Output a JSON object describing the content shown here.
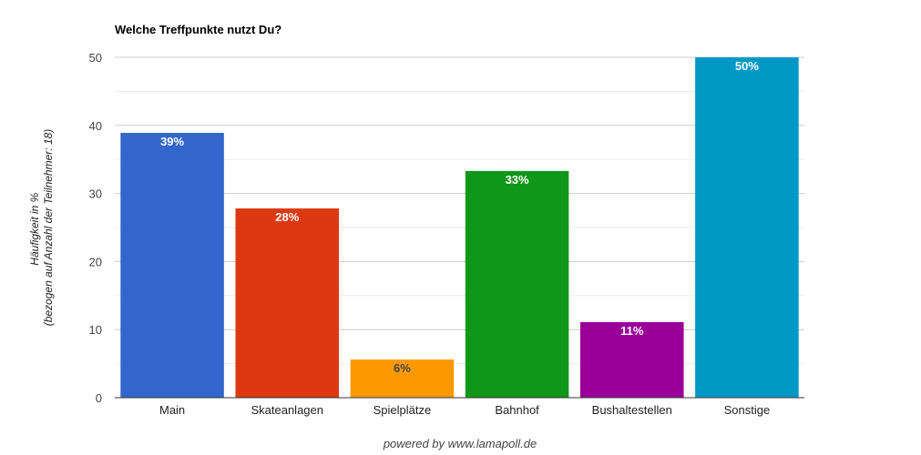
{
  "chart_data": {
    "type": "bar",
    "title": "Welche Treffpunkte nutzt Du?",
    "ylabel_line1": "Häufigkeit in %",
    "ylabel_line2": "(bezogen auf Anzahl der Teilnehmer: 18)",
    "ylim": [
      0,
      50
    ],
    "yticks": [
      0,
      10,
      20,
      30,
      40,
      50
    ],
    "grid": true,
    "categories": [
      "Main",
      "Skateanlagen",
      "Spielplätze",
      "Bahnhof",
      "Bushaltestellen",
      "Sonstige"
    ],
    "values": [
      38.9,
      27.8,
      5.6,
      33.3,
      11.1,
      50.0
    ],
    "data_labels": [
      "39%",
      "28%",
      "6%",
      "33%",
      "11%",
      "50%"
    ],
    "colors": [
      "#3366cc",
      "#dc3912",
      "#ff9900",
      "#109618",
      "#990099",
      "#0099c6"
    ],
    "label_colors": [
      "#ffffff",
      "#ffffff",
      "#444444",
      "#ffffff",
      "#ffffff",
      "#ffffff"
    ]
  },
  "footer": "powered by www.lamapoll.de"
}
